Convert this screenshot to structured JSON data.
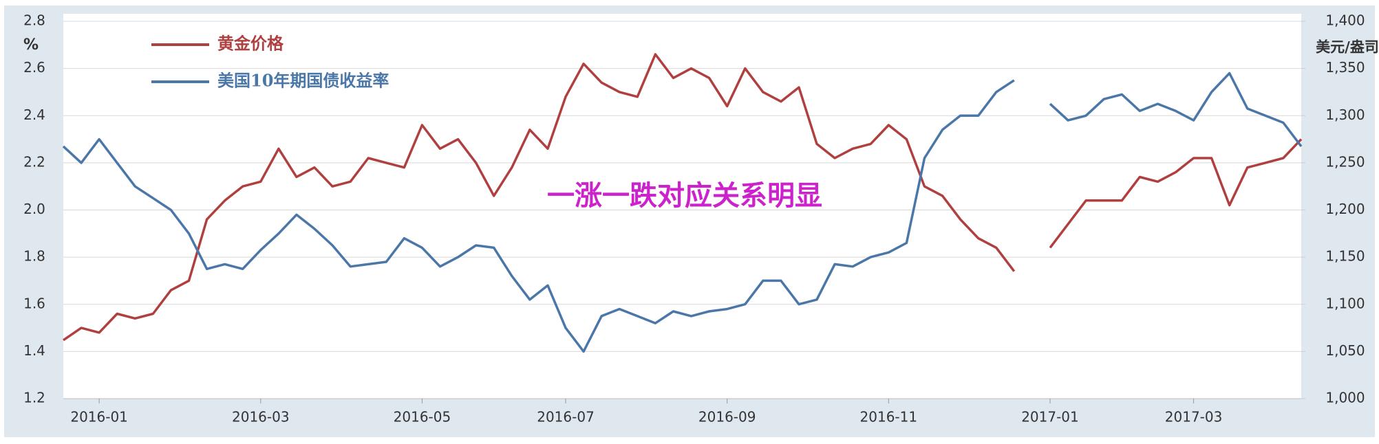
{
  "chart_data": {
    "type": "line",
    "annotation": "一涨一跌对应关系明显",
    "y_label": "%",
    "y2_label": "美元/盎司",
    "categories": [
      null,
      null,
      "2016-01",
      null,
      null,
      null,
      null,
      null,
      null,
      null,
      null,
      "2016-03",
      null,
      null,
      null,
      null,
      null,
      null,
      null,
      null,
      "2016-05",
      null,
      null,
      null,
      null,
      null,
      null,
      null,
      "2016-07",
      null,
      null,
      null,
      null,
      null,
      null,
      null,
      null,
      "2016-09",
      null,
      null,
      null,
      null,
      null,
      null,
      null,
      null,
      "2016-11",
      null,
      null,
      null,
      null,
      null,
      null,
      null,
      null,
      "2017-01",
      null,
      null,
      null,
      null,
      null,
      null,
      null,
      "2017-03",
      null,
      null,
      null,
      null,
      null,
      null
    ],
    "series": [
      {
        "name": "黄金价格",
        "color": "#b04040",
        "axis": "y2",
        "values": [
          1062,
          1075,
          1070,
          1090,
          1085,
          1090,
          1115,
          1125,
          1190,
          1210,
          1225,
          1230,
          1265,
          1235,
          1245,
          1225,
          1230,
          1255,
          1250,
          1245,
          1290,
          1265,
          1275,
          1250,
          1215,
          1245,
          1285,
          1265,
          1320,
          1355,
          1335,
          1325,
          1320,
          1365,
          1340,
          1350,
          1340,
          1310,
          1350,
          1325,
          1315,
          1330,
          1270,
          1255,
          1265,
          1270,
          1290,
          1275,
          1225,
          1215,
          1190,
          1170,
          1160,
          1135,
          null,
          1160,
          1185,
          1210,
          1210,
          1210,
          1235,
          1230,
          1240,
          1255,
          1255,
          1205,
          1245,
          1250,
          1255,
          1275
        ]
      },
      {
        "name": "美国10年期国债收益率",
        "color": "#4a77a8",
        "values": [
          2.27,
          2.2,
          2.3,
          2.2,
          2.1,
          2.05,
          2.0,
          1.9,
          1.75,
          1.77,
          1.75,
          1.83,
          1.9,
          1.98,
          1.92,
          1.85,
          1.76,
          1.77,
          1.78,
          1.88,
          1.84,
          1.76,
          1.8,
          1.85,
          1.84,
          1.72,
          1.62,
          1.68,
          1.5,
          1.4,
          1.55,
          1.58,
          1.55,
          1.52,
          1.57,
          1.55,
          1.57,
          1.58,
          1.6,
          1.7,
          1.7,
          1.6,
          1.62,
          1.77,
          1.76,
          1.8,
          1.82,
          1.86,
          2.22,
          2.34,
          2.4,
          2.4,
          2.5,
          2.55,
          null,
          2.45,
          2.38,
          2.4,
          2.47,
          2.49,
          2.42,
          2.45,
          2.42,
          2.38,
          2.5,
          2.58,
          2.43,
          2.4,
          2.37,
          2.27
        ]
      }
    ],
    "ylim": [
      1.2,
      2.8
    ],
    "yticks": [
      1.2,
      1.4,
      1.6,
      1.8,
      {
        "value": 2,
        "label": "2.0"
      },
      2.2,
      2.4,
      2.6,
      2.8
    ],
    "y2lim": [
      1000,
      1400
    ],
    "y2ticks": [
      {
        "value": 1000,
        "label": "1,000"
      },
      {
        "value": 1050,
        "label": "1,050"
      },
      {
        "value": 1100,
        "label": "1,100"
      },
      {
        "value": 1150,
        "label": "1,150"
      },
      {
        "value": 1200,
        "label": "1,200"
      },
      {
        "value": 1250,
        "label": "1,250"
      },
      {
        "value": 1300,
        "label": "1,300"
      },
      {
        "value": 1350,
        "label": "1,350"
      },
      {
        "value": 1400,
        "label": "1,400"
      }
    ],
    "grid": true,
    "legend": "top-left"
  }
}
